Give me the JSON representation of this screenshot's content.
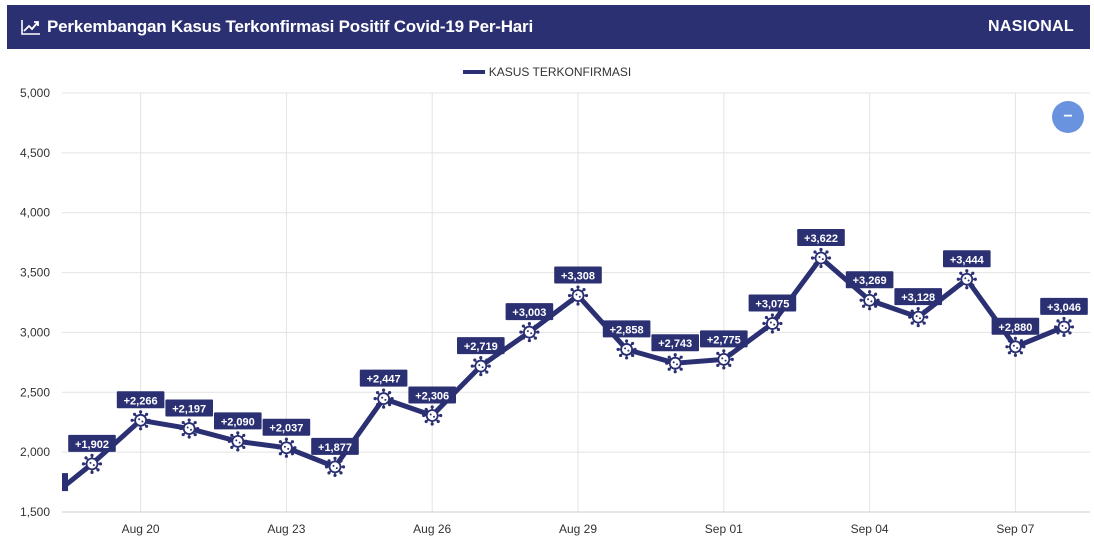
{
  "header": {
    "title": "Perkembangan Kasus Terkonfirmasi Positif Covid-19 Per-Hari",
    "badge": "NASIONAL",
    "title_icon": "trending-up-icon"
  },
  "zoom_button": {
    "icon": "minus-icon",
    "label": "−"
  },
  "colors": {
    "header_bg": "#2b3073",
    "line": "#2b3073",
    "zoom": "#6a93df"
  },
  "chart_data": {
    "type": "line",
    "ylim": [
      1500,
      5000
    ],
    "yticks": [
      1500,
      2000,
      2500,
      3000,
      3500,
      4000,
      4500,
      5000
    ],
    "ytick_labels": [
      "1,500",
      "2,000",
      "2,500",
      "3,000",
      "3,500",
      "4,000",
      "4,500",
      "5,000"
    ],
    "xtick_labels": [
      {
        "index": 1,
        "label": "Aug 20"
      },
      {
        "index": 4,
        "label": "Aug 23"
      },
      {
        "index": 7,
        "label": "Aug 26"
      },
      {
        "index": 10,
        "label": "Aug 29"
      },
      {
        "index": 13,
        "label": "Sep 01"
      },
      {
        "index": 16,
        "label": "Sep 04"
      },
      {
        "index": 19,
        "label": "Sep 07"
      }
    ],
    "legend": [
      "KASUS TERKONFIRMASI"
    ],
    "legend_position": "top-center",
    "grid": true,
    "series": [
      {
        "name": "KASUS TERKONFIRMASI",
        "values": [
          1902,
          2266,
          2197,
          2090,
          2037,
          1877,
          2447,
          2306,
          2719,
          3003,
          3308,
          2858,
          2743,
          2775,
          3075,
          3622,
          3269,
          3128,
          3444,
          2880,
          3046
        ],
        "labels": [
          "+1,902",
          "+2,266",
          "+2,197",
          "+2,090",
          "+2,037",
          "+1,877",
          "+2,447",
          "+2,306",
          "+2,719",
          "+3,003",
          "+3,308",
          "+2,858",
          "+2,743",
          "+2,775",
          "+3,075",
          "+3,622",
          "+3,269",
          "+3,128",
          "+3,444",
          "+2,880",
          "+3,046"
        ]
      }
    ]
  }
}
